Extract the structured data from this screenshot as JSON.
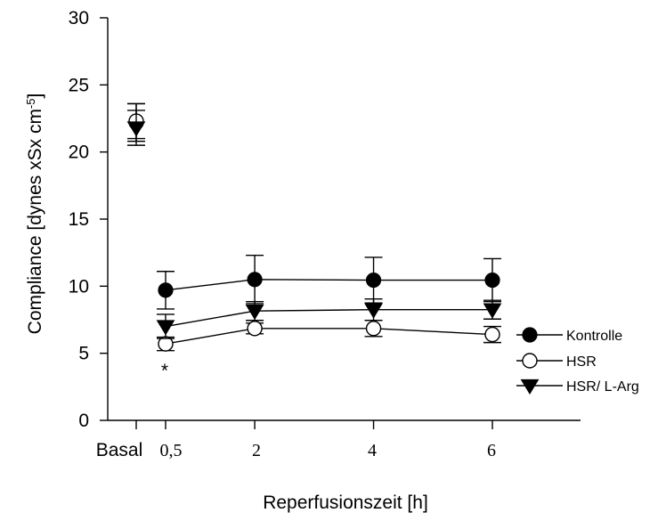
{
  "chart_data": {
    "type": "line",
    "xlabel": "Reperfusionszeit [h]",
    "ylabel": "Compliance [dynes xSx cm",
    "ylabel_sup": "-5",
    "ylim": [
      0,
      30
    ],
    "yticks": [
      0,
      5,
      10,
      15,
      20,
      25,
      30
    ],
    "xticks": [
      {
        "label": "Basal",
        "font": "sans"
      },
      {
        "label": "0,5",
        "font": "serif"
      },
      {
        "label": "2",
        "font": "serif"
      },
      {
        "label": "4",
        "font": "serif"
      },
      {
        "label": "6",
        "font": "serif"
      }
    ],
    "grid": false,
    "legend_position": "right",
    "annotations": [
      {
        "text": "*",
        "at": "0,5"
      }
    ],
    "series": [
      {
        "name": "Kontrolle",
        "marker": "filled-circle",
        "basal": {
          "y": 22.2,
          "err": 1.4
        },
        "points": [
          {
            "x": 0.5,
            "y": 9.7,
            "err": 1.4
          },
          {
            "x": 2,
            "y": 10.5,
            "err": 1.8
          },
          {
            "x": 4,
            "y": 10.45,
            "err": 1.7
          },
          {
            "x": 6,
            "y": 10.45,
            "err": 1.6
          }
        ]
      },
      {
        "name": "HSR",
        "marker": "open-circle",
        "basal": {
          "y": 22.3,
          "err": 1.3
        },
        "points": [
          {
            "x": 0.5,
            "y": 5.7,
            "err": 0.5
          },
          {
            "x": 2,
            "y": 6.85,
            "err": 0.4
          },
          {
            "x": 4,
            "y": 6.85,
            "err": 0.6
          },
          {
            "x": 6,
            "y": 6.4,
            "err": 0.6
          }
        ]
      },
      {
        "name": "HSR/ L-Arg",
        "marker": "filled-triangle-down",
        "basal": {
          "y": 21.8,
          "err": 1.3
        },
        "points": [
          {
            "x": 0.5,
            "y": 7.0,
            "err": 0.9
          },
          {
            "x": 2,
            "y": 8.15,
            "err": 0.7
          },
          {
            "x": 4,
            "y": 8.25,
            "err": 0.8
          },
          {
            "x": 6,
            "y": 8.25,
            "err": 0.7
          }
        ]
      }
    ]
  }
}
